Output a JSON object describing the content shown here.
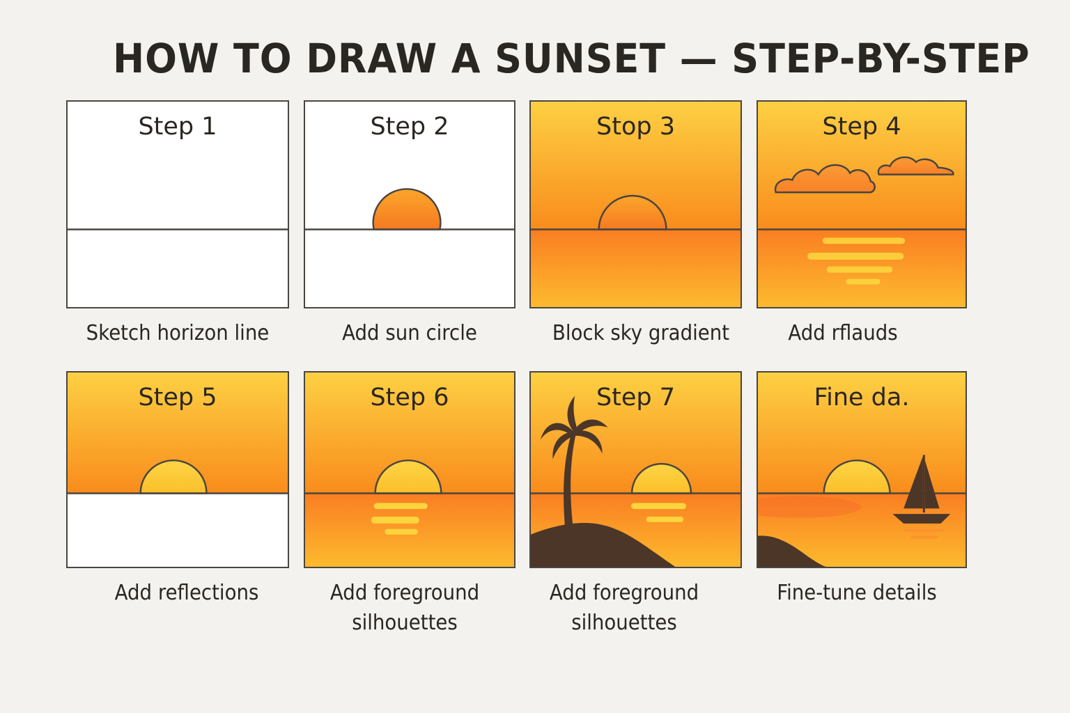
{
  "title": "HOW TO DRAW A SUNSET — STEP-BY-STEP",
  "panels": [
    {
      "label": "Step 1",
      "caption": "Sketch horizon line"
    },
    {
      "label": "Step 2",
      "caption": "Add sun circle"
    },
    {
      "label": "Stop 3",
      "caption": "Block sky gradient"
    },
    {
      "label": "Step 4",
      "caption": "Add rflauds"
    },
    {
      "label": "Step 5",
      "caption": "Add reflections"
    },
    {
      "label": "Step 6",
      "caption": "Add foreground silhouettes"
    },
    {
      "label": "Step 7",
      "caption": "Add foreground silhouettes"
    },
    {
      "label": "Fine dа.",
      "caption": "Fine-tune details"
    }
  ],
  "colors": {
    "sky_top": "#fcc93c",
    "sky_bottom": "#f98d1e",
    "sun_orange": "#f77f1f",
    "sun_yellow": "#fdcb37",
    "silhouette": "#4b3628",
    "outline": "#4a4540"
  }
}
